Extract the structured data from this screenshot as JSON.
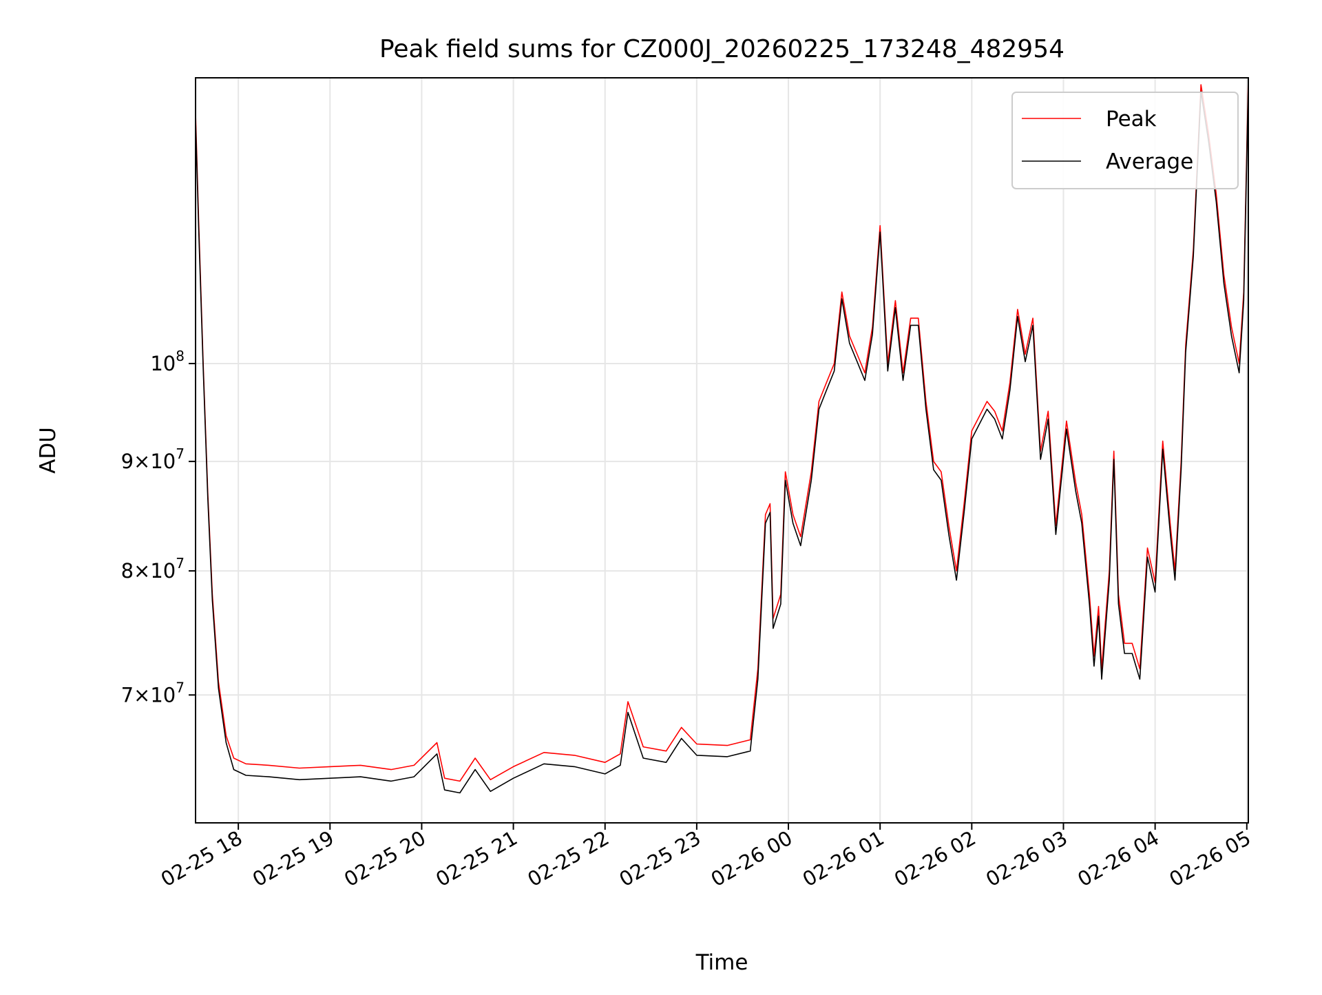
{
  "chart_data": {
    "type": "line",
    "title": "Peak field sums for CZ000J_20260225_173248_482954",
    "xlabel": "Time",
    "ylabel": "ADU",
    "yscale": "log",
    "xlim": [
      "2026-02-25 17:32",
      "2026-02-26 05:01"
    ],
    "ylim": [
      61000000,
      136000000
    ],
    "grid": true,
    "legend_position": "upper right",
    "x_ticks": [
      "02-25 18",
      "02-25 19",
      "02-25 20",
      "02-25 21",
      "02-25 22",
      "02-25 23",
      "02-26 00",
      "02-26 01",
      "02-26 02",
      "02-26 03",
      "02-26 04",
      "02-26 05"
    ],
    "y_ticks": [
      {
        "base": "10",
        "exp": "8",
        "value": 100000000,
        "mantissa": ""
      },
      {
        "base": "9×10",
        "exp": "7",
        "value": 90000000,
        "mantissa": "9"
      },
      {
        "base": "8×10",
        "exp": "7",
        "value": 80000000,
        "mantissa": "8"
      },
      {
        "base": "7×10",
        "exp": "7",
        "value": 70000000,
        "mantissa": "7"
      }
    ],
    "colors": {
      "Peak": "#ff0000",
      "Average": "#000000"
    },
    "series": [
      {
        "name": "Peak",
        "x": [
          "2026-02-25 17:32",
          "2026-02-25 17:34",
          "2026-02-25 17:37",
          "2026-02-25 17:40",
          "2026-02-25 17:43",
          "2026-02-25 17:47",
          "2026-02-25 17:52",
          "2026-02-25 17:57",
          "2026-02-25 18:05",
          "2026-02-25 18:20",
          "2026-02-25 18:40",
          "2026-02-25 19:00",
          "2026-02-25 19:20",
          "2026-02-25 19:40",
          "2026-02-25 19:55",
          "2026-02-25 20:10",
          "2026-02-25 20:15",
          "2026-02-25 20:25",
          "2026-02-25 20:35",
          "2026-02-25 20:45",
          "2026-02-25 21:00",
          "2026-02-25 21:20",
          "2026-02-25 21:40",
          "2026-02-25 22:00",
          "2026-02-25 22:10",
          "2026-02-25 22:15",
          "2026-02-25 22:25",
          "2026-02-25 22:40",
          "2026-02-25 22:50",
          "2026-02-25 23:00",
          "2026-02-25 23:20",
          "2026-02-25 23:35",
          "2026-02-25 23:40",
          "2026-02-25 23:45",
          "2026-02-25 23:48",
          "2026-02-25 23:50",
          "2026-02-25 23:55",
          "2026-02-25 23:58",
          "2026-02-26 00:03",
          "2026-02-26 00:08",
          "2026-02-26 00:15",
          "2026-02-26 00:20",
          "2026-02-26 00:25",
          "2026-02-26 00:30",
          "2026-02-26 00:35",
          "2026-02-26 00:40",
          "2026-02-26 00:45",
          "2026-02-26 00:50",
          "2026-02-26 00:55",
          "2026-02-26 01:00",
          "2026-02-26 01:05",
          "2026-02-26 01:10",
          "2026-02-26 01:15",
          "2026-02-26 01:20",
          "2026-02-26 01:25",
          "2026-02-26 01:30",
          "2026-02-26 01:35",
          "2026-02-26 01:40",
          "2026-02-26 01:45",
          "2026-02-26 01:50",
          "2026-02-26 01:55",
          "2026-02-26 02:00",
          "2026-02-26 02:10",
          "2026-02-26 02:15",
          "2026-02-26 02:20",
          "2026-02-26 02:25",
          "2026-02-26 02:30",
          "2026-02-26 02:35",
          "2026-02-26 02:40",
          "2026-02-26 02:45",
          "2026-02-26 02:50",
          "2026-02-26 02:55",
          "2026-02-26 03:02",
          "2026-02-26 03:08",
          "2026-02-26 03:12",
          "2026-02-26 03:17",
          "2026-02-26 03:20",
          "2026-02-26 03:23",
          "2026-02-26 03:25",
          "2026-02-26 03:30",
          "2026-02-26 03:33",
          "2026-02-26 03:36",
          "2026-02-26 03:40",
          "2026-02-26 03:45",
          "2026-02-26 03:50",
          "2026-02-26 03:55",
          "2026-02-26 04:00",
          "2026-02-26 04:05",
          "2026-02-26 04:10",
          "2026-02-26 04:13",
          "2026-02-26 04:17",
          "2026-02-26 04:20",
          "2026-02-26 04:25",
          "2026-02-26 04:30",
          "2026-02-26 04:35",
          "2026-02-26 04:40",
          "2026-02-26 04:45",
          "2026-02-26 04:50",
          "2026-02-26 04:55",
          "2026-02-26 04:58",
          "2026-02-26 05:01"
        ],
        "y": [
          131000000,
          117000000,
          100000000,
          87000000,
          78000000,
          71000000,
          67000000,
          65400000,
          65000000,
          64900000,
          64700000,
          64800000,
          64900000,
          64600000,
          64900000,
          66500000,
          64000000,
          63800000,
          65400000,
          63900000,
          64800000,
          65800000,
          65600000,
          65100000,
          65700000,
          69500000,
          66200000,
          65900000,
          67600000,
          66400000,
          66300000,
          66700000,
          72000000,
          85000000,
          86000000,
          76000000,
          78000000,
          89000000,
          85000000,
          83000000,
          89000000,
          96000000,
          98000000,
          100000000,
          108000000,
          103000000,
          101000000,
          99000000,
          104000000,
          116000000,
          100000000,
          107000000,
          99000000,
          105000000,
          105000000,
          96000000,
          90000000,
          89000000,
          84000000,
          80000000,
          86000000,
          93000000,
          96000000,
          95000000,
          93000000,
          98000000,
          106000000,
          101000000,
          105000000,
          91000000,
          95000000,
          84000000,
          94000000,
          88000000,
          85000000,
          78000000,
          73000000,
          77000000,
          72000000,
          80000000,
          91000000,
          78000000,
          74000000,
          74000000,
          72000000,
          82000000,
          79000000,
          92000000,
          84000000,
          80000000,
          90000000,
          102000000,
          113000000,
          135000000,
          128000000,
          120000000,
          110000000,
          104000000,
          100000000,
          108000000,
          136000000
        ]
      },
      {
        "name": "Average",
        "x": [
          "2026-02-25 17:32",
          "2026-02-25 17:34",
          "2026-02-25 17:37",
          "2026-02-25 17:40",
          "2026-02-25 17:43",
          "2026-02-25 17:47",
          "2026-02-25 17:52",
          "2026-02-25 17:57",
          "2026-02-25 18:05",
          "2026-02-25 18:20",
          "2026-02-25 18:40",
          "2026-02-25 19:00",
          "2026-02-25 19:20",
          "2026-02-25 19:40",
          "2026-02-25 19:55",
          "2026-02-25 20:10",
          "2026-02-25 20:15",
          "2026-02-25 20:25",
          "2026-02-25 20:35",
          "2026-02-25 20:45",
          "2026-02-25 21:00",
          "2026-02-25 21:20",
          "2026-02-25 21:40",
          "2026-02-25 22:00",
          "2026-02-25 22:10",
          "2026-02-25 22:15",
          "2026-02-25 22:25",
          "2026-02-25 22:40",
          "2026-02-25 22:50",
          "2026-02-25 23:00",
          "2026-02-25 23:20",
          "2026-02-25 23:35",
          "2026-02-25 23:40",
          "2026-02-25 23:45",
          "2026-02-25 23:48",
          "2026-02-25 23:50",
          "2026-02-25 23:55",
          "2026-02-25 23:58",
          "2026-02-26 00:03",
          "2026-02-26 00:08",
          "2026-02-26 00:15",
          "2026-02-26 00:20",
          "2026-02-26 00:25",
          "2026-02-26 00:30",
          "2026-02-26 00:35",
          "2026-02-26 00:40",
          "2026-02-26 00:45",
          "2026-02-26 00:50",
          "2026-02-26 00:55",
          "2026-02-26 01:00",
          "2026-02-26 01:05",
          "2026-02-26 01:10",
          "2026-02-26 01:15",
          "2026-02-26 01:20",
          "2026-02-26 01:25",
          "2026-02-26 01:30",
          "2026-02-26 01:35",
          "2026-02-26 01:40",
          "2026-02-26 01:45",
          "2026-02-26 01:50",
          "2026-02-26 01:55",
          "2026-02-26 02:00",
          "2026-02-26 02:10",
          "2026-02-26 02:15",
          "2026-02-26 02:20",
          "2026-02-26 02:25",
          "2026-02-26 02:30",
          "2026-02-26 02:35",
          "2026-02-26 02:40",
          "2026-02-26 02:45",
          "2026-02-26 02:50",
          "2026-02-26 02:55",
          "2026-02-26 03:02",
          "2026-02-26 03:08",
          "2026-02-26 03:12",
          "2026-02-26 03:17",
          "2026-02-26 03:20",
          "2026-02-26 03:23",
          "2026-02-26 03:25",
          "2026-02-26 03:30",
          "2026-02-26 03:33",
          "2026-02-26 03:36",
          "2026-02-26 03:40",
          "2026-02-26 03:45",
          "2026-02-26 03:50",
          "2026-02-26 03:55",
          "2026-02-26 04:00",
          "2026-02-26 04:05",
          "2026-02-26 04:10",
          "2026-02-26 04:13",
          "2026-02-26 04:17",
          "2026-02-26 04:20",
          "2026-02-26 04:25",
          "2026-02-26 04:30",
          "2026-02-26 04:35",
          "2026-02-26 04:40",
          "2026-02-26 04:45",
          "2026-02-26 04:50",
          "2026-02-26 04:55",
          "2026-02-26 04:58",
          "2026-02-26 05:01"
        ],
        "y": [
          130000000,
          116000000,
          99500000,
          86500000,
          77500000,
          70500000,
          66500000,
          64600000,
          64200000,
          64100000,
          63900000,
          64000000,
          64100000,
          63800000,
          64100000,
          65700000,
          63200000,
          63000000,
          64600000,
          63100000,
          64000000,
          65000000,
          64800000,
          64300000,
          64900000,
          68700000,
          65400000,
          65100000,
          66800000,
          65600000,
          65500000,
          65900000,
          71200000,
          84200000,
          85200000,
          75200000,
          77200000,
          88200000,
          84200000,
          82200000,
          88200000,
          95200000,
          97200000,
          99200000,
          107200000,
          102200000,
          100200000,
          98200000,
          103200000,
          115200000,
          99200000,
          106200000,
          98200000,
          104200000,
          104200000,
          95200000,
          89200000,
          88200000,
          83200000,
          79200000,
          85200000,
          92200000,
          95200000,
          94200000,
          92200000,
          97200000,
          105200000,
          100200000,
          104200000,
          90200000,
          94200000,
          83200000,
          93200000,
          87200000,
          84200000,
          77200000,
          72200000,
          76200000,
          71200000,
          79200000,
          90200000,
          77200000,
          73200000,
          73200000,
          71200000,
          81200000,
          78200000,
          91200000,
          83200000,
          79200000,
          89200000,
          101200000,
          112200000,
          134000000,
          127000000,
          119000000,
          109000000,
          103000000,
          99000000,
          107000000,
          135000000
        ]
      }
    ]
  }
}
